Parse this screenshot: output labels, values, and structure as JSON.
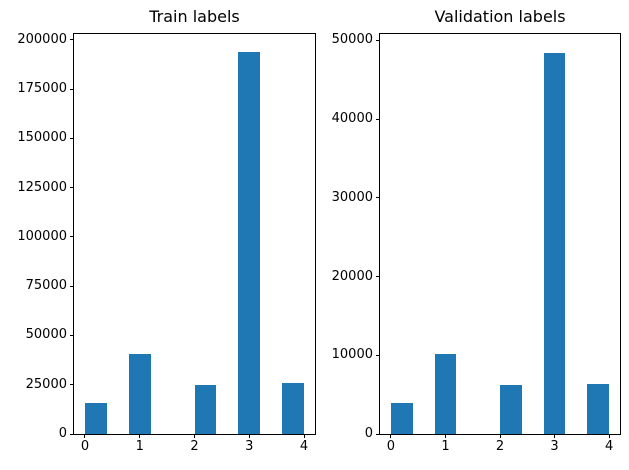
{
  "figure": {
    "background": "#ffffff",
    "bar_color": "#1f77b4"
  },
  "chart_data": [
    {
      "type": "bar",
      "title": "Train labels",
      "categories": [
        "0",
        "1",
        "2",
        "3",
        "4"
      ],
      "values": [
        15500,
        40500,
        24800,
        194000,
        26000
      ],
      "xlabel": "",
      "ylabel": "",
      "xlim": [
        -0.2,
        4.2
      ],
      "ylim": [
        0,
        203000
      ],
      "xticks": [
        0,
        1,
        2,
        3,
        4
      ],
      "yticks": [
        0,
        25000,
        50000,
        75000,
        100000,
        125000,
        150000,
        175000,
        200000
      ],
      "bar_centers": [
        0.2,
        1.0,
        2.2,
        3.0,
        3.8
      ],
      "bar_width": 0.4,
      "grid": false,
      "legend": null
    },
    {
      "type": "bar",
      "title": "Validation labels",
      "categories": [
        "0",
        "1",
        "2",
        "3",
        "4"
      ],
      "values": [
        3900,
        10150,
        6200,
        48400,
        6400
      ],
      "xlabel": "",
      "ylabel": "",
      "xlim": [
        -0.2,
        4.2
      ],
      "ylim": [
        0,
        50800
      ],
      "xticks": [
        0,
        1,
        2,
        3,
        4
      ],
      "yticks": [
        0,
        10000,
        20000,
        30000,
        40000,
        50000
      ],
      "bar_centers": [
        0.2,
        1.0,
        2.2,
        3.0,
        3.8
      ],
      "bar_width": 0.4,
      "grid": false,
      "legend": null
    }
  ]
}
